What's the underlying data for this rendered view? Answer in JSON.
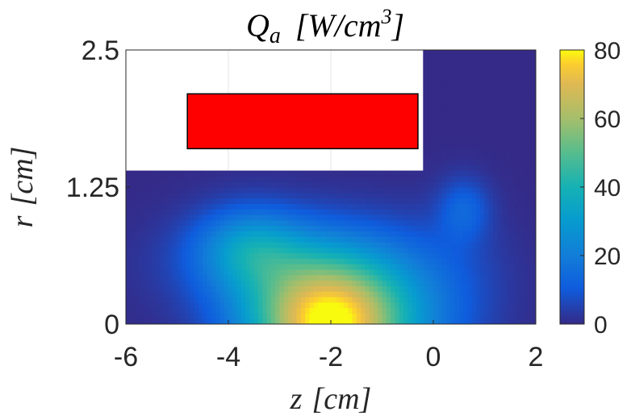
{
  "chart_data": {
    "type": "heatmap",
    "title": "Q_a [W/cm^3]",
    "title_parts": {
      "symbol": "Q",
      "subscript": "a",
      "unit_open": "[W/cm",
      "unit_exp": "3",
      "unit_close": "]"
    },
    "xlabel": "z [cm]",
    "xlabel_parts": {
      "symbol": "z",
      "unit": "[cm]"
    },
    "ylabel": "r [cm]",
    "ylabel_parts": {
      "symbol": "r",
      "unit": "[cm]"
    },
    "xlim": [
      -6,
      2
    ],
    "ylim": [
      0,
      2.5
    ],
    "xticks": [
      -6,
      -4,
      -2,
      0,
      2
    ],
    "xtick_labels": [
      "-6",
      "-4",
      "-2",
      "0",
      "2"
    ],
    "yticks": [
      0,
      1.25,
      2.5
    ],
    "ytick_labels": [
      "0",
      "1.25",
      "2.5"
    ],
    "colorbar": {
      "colormap": "parula",
      "range": [
        0,
        80
      ],
      "ticks": [
        0,
        20,
        40,
        60,
        80
      ],
      "tick_labels": [
        "0",
        "20",
        "40",
        "60",
        "80"
      ]
    },
    "masked_region": {
      "z": [
        -6,
        -0.2
      ],
      "r": [
        1.4,
        2.5
      ],
      "color": "#ffffff"
    },
    "object": {
      "z": [
        -4.8,
        -0.3
      ],
      "r": [
        1.6,
        2.1
      ],
      "color": "#ff0000"
    },
    "hotspots": [
      {
        "z": -2.0,
        "r": 0.0,
        "peak": 80
      },
      {
        "z": -3.6,
        "r": 0.7,
        "peak": 22
      },
      {
        "z": 0.6,
        "r": 1.05,
        "peak": 12
      }
    ],
    "grid": false
  }
}
